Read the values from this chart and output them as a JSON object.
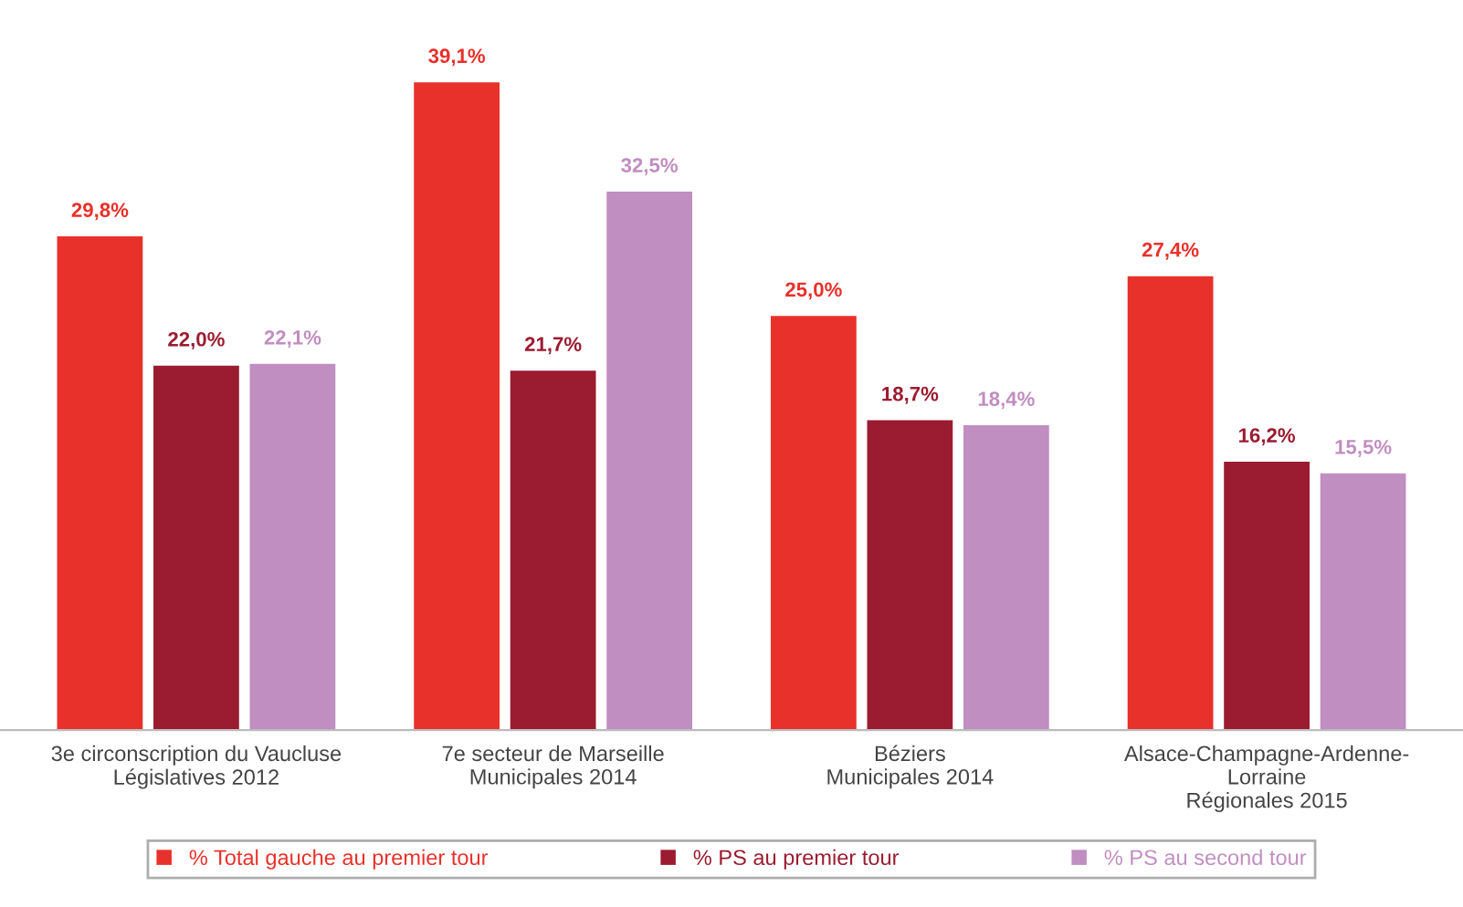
{
  "chart_data": {
    "type": "bar",
    "categories": [
      "3e circonscription du Vaucluse\nLégislatives 2012",
      "7e secteur de Marseille\nMunicipales 2014",
      "Béziers\nMunicipales 2014",
      "Alsace-Champagne-Ardenne-\nLorraine\nRégionales 2015"
    ],
    "series": [
      {
        "name": "% Total gauche au premier tour",
        "color": "#e8312a",
        "values": [
          29.8,
          39.1,
          25.0,
          27.4
        ],
        "value_labels": [
          "29,8%",
          "39,1%",
          "25,0%",
          "27,4%"
        ]
      },
      {
        "name": "% PS au premier tour",
        "color": "#9b1b30",
        "values": [
          22.0,
          21.7,
          18.7,
          16.2
        ],
        "value_labels": [
          "22,0%",
          "21,7%",
          "18,7%",
          "16,2%"
        ]
      },
      {
        "name": "% PS au second tour",
        "color": "#c08ec0",
        "values": [
          22.1,
          32.5,
          18.4,
          15.5
        ],
        "value_labels": [
          "22,1%",
          "32,5%",
          "18,4%",
          "15,5%"
        ]
      }
    ],
    "legend": "bottom",
    "grid": false
  }
}
